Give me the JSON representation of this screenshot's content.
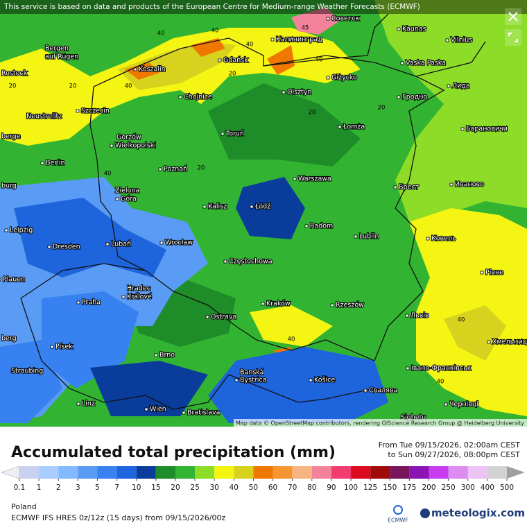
{
  "header": {
    "notice": "This service is based on data and products of the European Centre for Medium-range Weather Forecasts (ECMWF)"
  },
  "map": {
    "cities": [
      "Советск",
      "Kaunas",
      "Vilnius",
      "Калининград",
      "Gdańsk",
      "Koszalin",
      "Bergen",
      "auf Rügen",
      "Rostock",
      "Vaska Paska",
      "Giżycko",
      "Лида",
      "Olsztyn",
      "Chojnice",
      "Гродно",
      "Szczecin",
      "Neustrelitz",
      "Łomża",
      "Барановичи",
      "berge",
      "Gorzów",
      "Wielkopolski",
      "Toruń",
      "Berlin",
      "Poznań",
      "Warszawa",
      "Брест",
      "Иваново",
      "burg",
      "Zielona",
      "Góra",
      "Kalisz",
      "Łódź",
      "Radom",
      "Leipzig",
      "Lublin",
      "Ковель",
      "Dresden",
      "Lubań",
      "Wrocław",
      "Częstochowa",
      "Plauen",
      "Рівне",
      "Hradec",
      "Králové",
      "Praha",
      "Kraków",
      "Rzeszów",
      "Львів",
      "Ostrava",
      "Хмельницький",
      "berg",
      "Písek",
      "Brno",
      "Івано-Франківськ",
      "Banská",
      "Bystrica",
      "Košice",
      "Straubing",
      "Свалява",
      "Linz",
      "Wien",
      "Bratislava",
      "Чернівці",
      "Sighetu"
    ],
    "contour_labels": [
      "45",
      "40",
      "40",
      "40",
      "40",
      "40",
      "20",
      "20",
      "20",
      "20",
      "20",
      "20",
      "40",
      "40",
      "40",
      "40"
    ],
    "attribution": "Map data © OpenStreetMap contributors, rendering GIScience Research Group @ Heidelberg University"
  },
  "legend": {
    "title": "Accumulated total precipitation (mm)",
    "period_from": "From Tue 09/15/2026, 02:00am CEST",
    "period_to": "to Sun 09/27/2026, 08:00pm CEST",
    "ticks": [
      0.1,
      1,
      2,
      3,
      5,
      7,
      10,
      15,
      20,
      25,
      30,
      40,
      50,
      60,
      70,
      80,
      90,
      100,
      125,
      150,
      175,
      200,
      250,
      300,
      400,
      500
    ],
    "colors": [
      "#eeeef6",
      "#c8d2f0",
      "#aacdff",
      "#82b9ff",
      "#5a9bf5",
      "#3782f0",
      "#1e64dc",
      "#0a3c9b",
      "#1e8c28",
      "#32b432",
      "#8cdc28",
      "#f5f514",
      "#d7d21e",
      "#f07800",
      "#f59632",
      "#f5b482",
      "#f5829b",
      "#f03c6e",
      "#dc0a1e",
      "#a00a0a",
      "#78145a",
      "#8c14b4",
      "#c83cf0",
      "#dc8cf0",
      "#ebc3f5",
      "#d2d2d2",
      "#a0a0a0"
    ]
  },
  "footer": {
    "region": "Poland",
    "model": "ECMWF IFS HRES 0z/12z (15 days) from 09/15/2026/00z",
    "ecmwf_logo": "ECMWF",
    "brand": "meteologix.com"
  }
}
